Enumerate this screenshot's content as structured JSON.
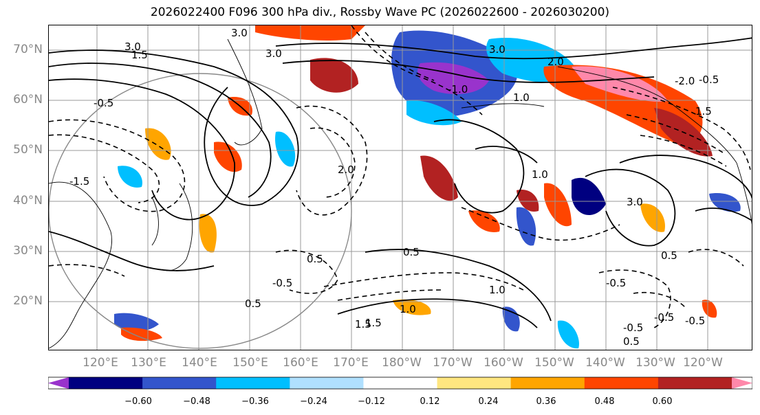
{
  "title": "2026022400 F096 300 hPa div., Rossby Wave PC (2026022600 - 2026030200)",
  "lat_labels": [
    "70°N",
    "60°N",
    "50°N",
    "40°N",
    "30°N",
    "20°N"
  ],
  "lon_labels": [
    "120°E",
    "130°E",
    "140°E",
    "150°E",
    "160°E",
    "170°E",
    "180°W",
    "170°W",
    "160°W",
    "150°W",
    "140°W",
    "130°W",
    "120°W"
  ],
  "colorbar": {
    "ticks": [
      "−0.60",
      "−0.48",
      "−0.36",
      "−0.24",
      "−0.12",
      "0.12",
      "0.24",
      "0.36",
      "0.48",
      "0.60"
    ],
    "colors": [
      "#9933cc",
      "#000080",
      "#3355cc",
      "#00bfff",
      "#b0e0ff",
      "#ffffff",
      "#ffe680",
      "#ffa500",
      "#ff4500",
      "#b22222",
      "#ff88aa"
    ]
  },
  "contour_labels": [
    "3.0",
    "3.0",
    "3.0",
    "1.5",
    "-0.5",
    "3.0",
    "2.0",
    "1.0",
    "-1.0",
    "-0.5",
    "0.5",
    "0.5",
    "-0.5",
    "0.5",
    "1.5",
    "1.0",
    "1.0",
    "3.0",
    "2.0",
    "-2.0",
    "-0.5",
    "-1.5",
    "-0.5",
    "0.5",
    "-0.5",
    "-0.5",
    "0.5",
    "1.0",
    "1.5",
    "1.5"
  ]
}
